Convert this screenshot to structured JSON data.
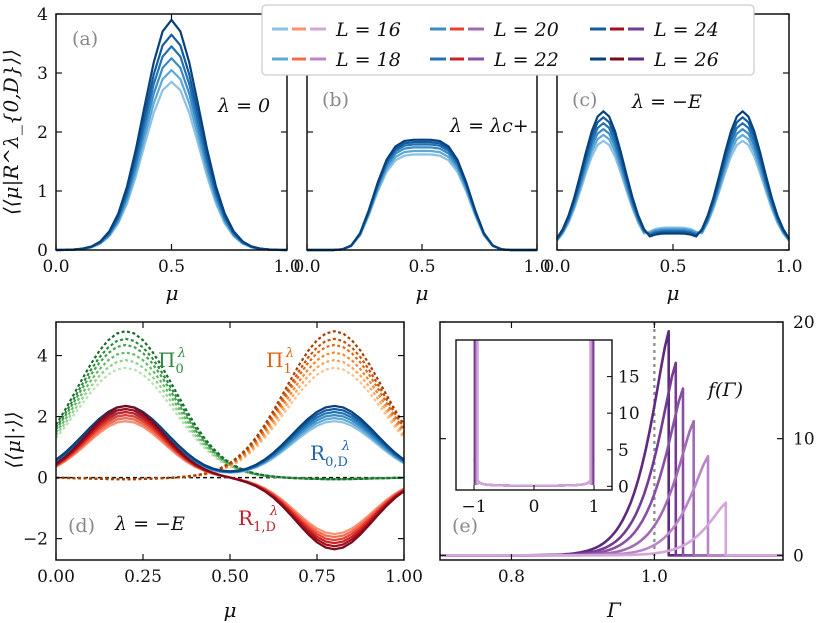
{
  "legend": {
    "entries": [
      "L = 16",
      "L = 18",
      "L = 20",
      "L = 22",
      "L = 24",
      "L = 26"
    ],
    "L_values": [
      16,
      18,
      20,
      22,
      24,
      26
    ],
    "blue_shades": [
      "#8cc2e3",
      "#5ea8d6",
      "#3a8cc7",
      "#2272b4",
      "#125b9f",
      "#08417c"
    ],
    "red_shades": [
      "#fc9070",
      "#f86a50",
      "#e8412f",
      "#cc2226",
      "#a90e1f",
      "#7d0a1a"
    ],
    "green_shades": [
      "#b7e2b0",
      "#8fd18a",
      "#66bb6a",
      "#45a34e",
      "#2e8a3e",
      "#1a6d2f"
    ],
    "orange_shades": [
      "#fdc08c",
      "#fda45a",
      "#f8852f",
      "#e66a16",
      "#c9520b",
      "#a33f06"
    ],
    "purple_shades": [
      "#d3a6d9",
      "#bb86c8",
      "#a06ab4",
      "#8850a2",
      "#733b91",
      "#5e2a7f"
    ]
  },
  "colors": {
    "axis": "#111111",
    "panel_tag": "#888888",
    "dotted": "#888888",
    "zero_line": "#111111"
  },
  "chart_data": [
    {
      "panel": "(a)",
      "type": "line",
      "annotation": "λ = 0",
      "xlabel": "μ",
      "ylabel": "⟨⟨μ|R^λ_{0,D}⟩⟩",
      "xlim": [
        0,
        1
      ],
      "ylim": [
        0,
        4
      ],
      "xticks": [
        "0.0",
        "0.5",
        "1.0"
      ],
      "yticks": [
        "0",
        "1",
        "2",
        "3",
        "4"
      ],
      "model": {
        "kind": "gauss",
        "center": 0.5,
        "width": 0.12,
        "peaks": [
          2.85,
          3.05,
          3.25,
          3.45,
          3.65,
          3.9
        ]
      }
    },
    {
      "panel": "(b)",
      "type": "line",
      "annotation": "λ = λc+",
      "xlabel": "μ",
      "xlim": [
        0,
        1
      ],
      "ylim": [
        0,
        4
      ],
      "xticks": [
        "0.0",
        "0.5",
        "1.0"
      ],
      "model": {
        "kind": "plateau",
        "center": 0.5,
        "width": 0.23,
        "peaks": [
          1.62,
          1.68,
          1.74,
          1.79,
          1.83,
          1.87
        ]
      }
    },
    {
      "panel": "(c)",
      "type": "line",
      "annotation": "λ = −E",
      "xlabel": "μ",
      "xlim": [
        0,
        1
      ],
      "ylim": [
        0,
        4
      ],
      "xticks": [
        "0.0",
        "0.5",
        "1.0"
      ],
      "model": {
        "kind": "double",
        "centers": [
          0.2,
          0.8
        ],
        "width": 0.09,
        "dip": [
          0.38,
          0.36,
          0.34,
          0.32,
          0.3,
          0.28
        ],
        "peaks": [
          1.85,
          1.95,
          2.05,
          2.15,
          2.25,
          2.35
        ]
      }
    },
    {
      "panel": "(d)",
      "type": "line",
      "annotation": "λ = −E",
      "xlabel": "μ",
      "ylabel": "⟨⟨μ|·⟩⟩",
      "xlim": [
        0,
        1
      ],
      "ylim": [
        -2.7,
        5.1
      ],
      "xticks": [
        "0.00",
        "0.25",
        "0.50",
        "0.75",
        "1.00"
      ],
      "yticks": [
        "−2",
        "0",
        "2",
        "4"
      ],
      "series": [
        {
          "name": "Π0λ",
          "kind": "gauss",
          "center": 0.2,
          "width": 0.14,
          "peaks": [
            3.6,
            3.85,
            4.1,
            4.35,
            4.55,
            4.8
          ],
          "style": "dotted"
        },
        {
          "name": "Π1λ",
          "kind": "gauss",
          "center": 0.8,
          "width": 0.14,
          "peaks": [
            3.6,
            3.85,
            4.1,
            4.35,
            4.55,
            4.8
          ],
          "style": "dotted"
        },
        {
          "name": "R0,Dλ",
          "kind": "double",
          "centers": [
            0.2,
            0.8
          ],
          "width": 0.09,
          "peaks": [
            1.85,
            1.95,
            2.05,
            2.15,
            2.25,
            2.35
          ]
        },
        {
          "name": "R1,Dλ",
          "kind": "anti",
          "centers": [
            0.2,
            0.8
          ],
          "width": 0.11,
          "peaks": [
            1.85,
            1.95,
            2.05,
            2.15,
            2.25,
            2.35
          ]
        }
      ]
    },
    {
      "panel": "(e)",
      "type": "line",
      "annotation": "f(Γ)",
      "xlabel": "Γ",
      "xlim": [
        0.7,
        1.18
      ],
      "ylim": [
        -0.4,
        20
      ],
      "xticks": [
        "0.8",
        "1.0"
      ],
      "yticks": [
        "0",
        "10",
        "20"
      ],
      "vline_x": 1.0,
      "peak_positions": [
        1.02,
        1.03,
        1.04,
        1.055,
        1.075,
        1.1
      ],
      "peak_heights": [
        19.2,
        16.5,
        14.3,
        11.5,
        8.5,
        4.5
      ],
      "inset": {
        "xlim": [
          -1.3,
          1.3
        ],
        "ylim": [
          -0.5,
          20
        ],
        "xticks": [
          "−1",
          "0",
          "1"
        ],
        "yticks": [
          "0",
          "5",
          "10",
          "15"
        ]
      }
    }
  ]
}
